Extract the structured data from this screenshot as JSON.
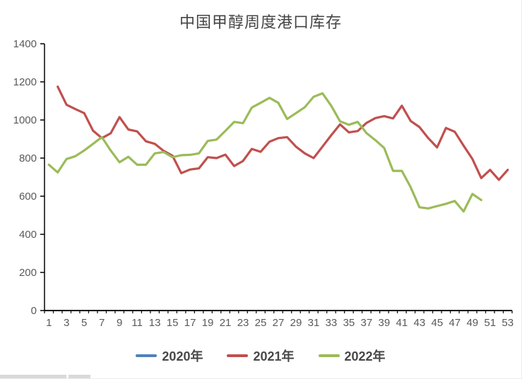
{
  "chart_data": {
    "type": "line",
    "title": "中国甲醇周度港口库存",
    "xlabel": "",
    "ylabel": "",
    "x": [
      1,
      2,
      3,
      4,
      5,
      6,
      7,
      8,
      9,
      10,
      11,
      12,
      13,
      14,
      15,
      16,
      17,
      18,
      19,
      20,
      21,
      22,
      23,
      24,
      25,
      26,
      27,
      28,
      29,
      30,
      31,
      32,
      33,
      34,
      35,
      36,
      37,
      38,
      39,
      40,
      41,
      42,
      43,
      44,
      45,
      46,
      47,
      48,
      49,
      50,
      51,
      52,
      53
    ],
    "xtick_labels": [
      1,
      3,
      5,
      7,
      9,
      11,
      13,
      15,
      17,
      19,
      21,
      23,
      25,
      27,
      29,
      31,
      33,
      35,
      37,
      39,
      41,
      43,
      45,
      47,
      49,
      51,
      53
    ],
    "yticks": [
      0,
      200,
      400,
      600,
      800,
      1000,
      1200,
      1400
    ],
    "ylim": [
      0,
      1400
    ],
    "grid": false,
    "legend_position": "bottom",
    "series": [
      {
        "name": "2020年",
        "color": "#4F81BD",
        "values": []
      },
      {
        "name": "2021年",
        "color": "#C0504D",
        "values": [
          null,
          1175,
          1080,
          1057,
          1036,
          944,
          905,
          930,
          1015,
          950,
          940,
          888,
          875,
          838,
          813,
          721,
          740,
          746,
          805,
          800,
          818,
          758,
          785,
          848,
          833,
          886,
          905,
          910,
          860,
          825,
          800,
          860,
          920,
          977,
          935,
          942,
          985,
          1010,
          1020,
          1008,
          1075,
          995,
          963,
          905,
          856,
          958,
          938,
          865,
          795,
          695,
          738,
          686,
          738
        ]
      },
      {
        "name": "2022年",
        "color": "#9BBB59",
        "values": [
          765,
          725,
          795,
          810,
          840,
          875,
          910,
          840,
          778,
          807,
          765,
          765,
          825,
          832,
          805,
          815,
          817,
          825,
          890,
          897,
          943,
          990,
          983,
          1065,
          1090,
          1116,
          1090,
          1005,
          1036,
          1067,
          1122,
          1140,
          1075,
          993,
          975,
          990,
          931,
          894,
          853,
          733,
          733,
          647,
          542,
          536,
          548,
          560,
          575,
          520,
          612,
          580,
          null,
          null,
          null
        ]
      }
    ]
  },
  "colors": {
    "axis": "#000000",
    "tick_label": "#595959",
    "title": "#444444",
    "legend_text": "#484848",
    "sheet_cell": "#d9d9d9"
  }
}
